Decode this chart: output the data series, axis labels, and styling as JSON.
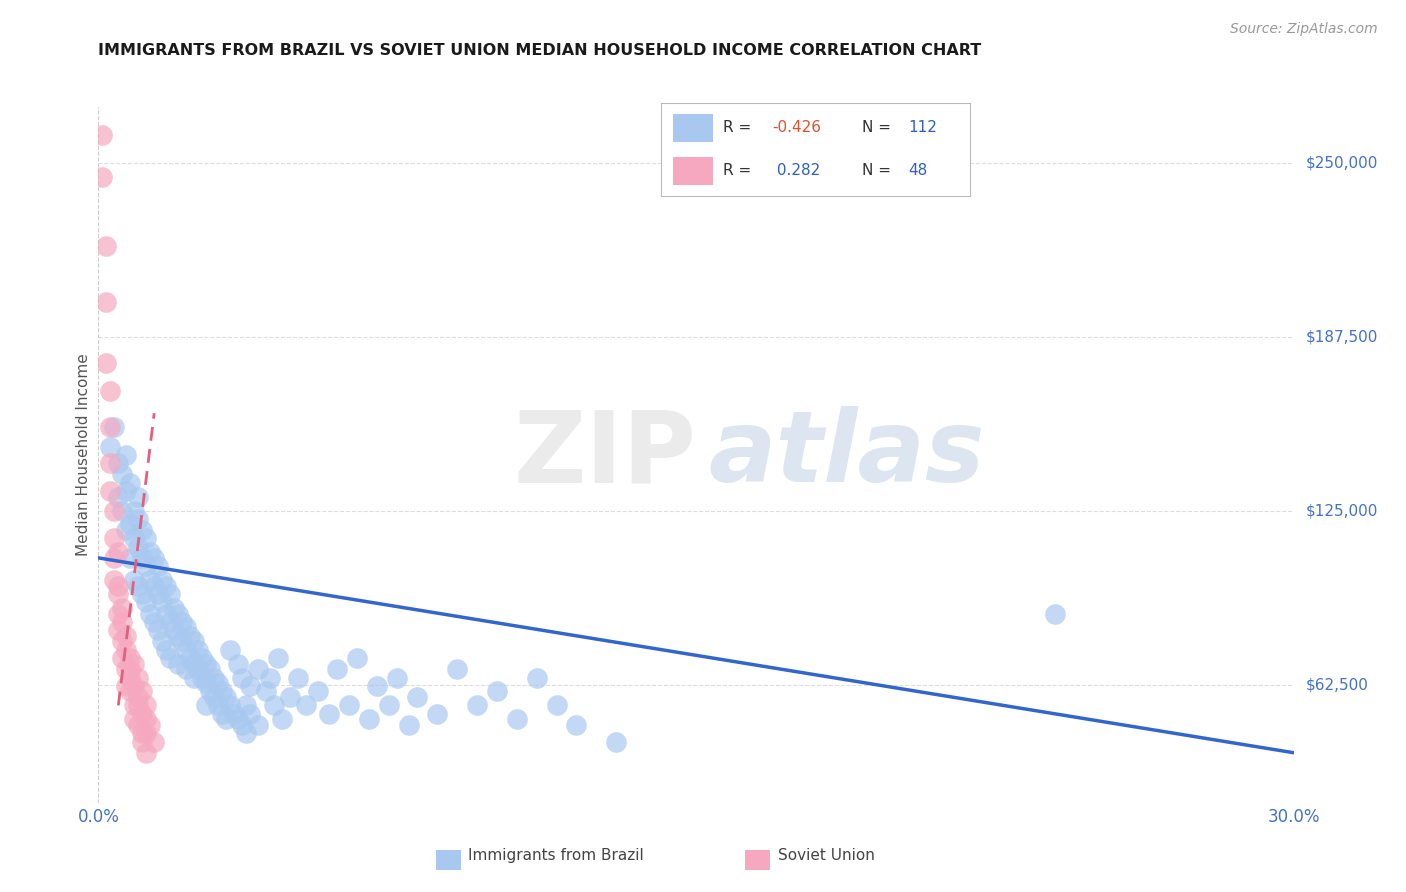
{
  "title": "IMMIGRANTS FROM BRAZIL VS SOVIET UNION MEDIAN HOUSEHOLD INCOME CORRELATION CHART",
  "source": "Source: ZipAtlas.com",
  "ylabel": "Median Household Income",
  "xlim": [
    0.0,
    0.3
  ],
  "ylim": [
    20000,
    270000
  ],
  "yticks": [
    62500,
    125000,
    187500,
    250000
  ],
  "ytick_labels": [
    "$62,500",
    "$125,000",
    "$187,500",
    "$250,000"
  ],
  "xticks": [
    0.0,
    0.05,
    0.1,
    0.15,
    0.2,
    0.25,
    0.3
  ],
  "xtick_left": "0.0%",
  "xtick_right": "30.0%",
  "color_brazil": "#a8c8f0",
  "color_soviet": "#f5a8c0",
  "color_brazil_line": "#3366cc",
  "color_soviet_line": "#e06080",
  "color_tick_labels": "#4472c4",
  "brazil_points": [
    [
      0.003,
      148000
    ],
    [
      0.004,
      155000
    ],
    [
      0.005,
      130000
    ],
    [
      0.005,
      142000
    ],
    [
      0.006,
      125000
    ],
    [
      0.006,
      138000
    ],
    [
      0.007,
      118000
    ],
    [
      0.007,
      132000
    ],
    [
      0.007,
      145000
    ],
    [
      0.008,
      120000
    ],
    [
      0.008,
      108000
    ],
    [
      0.008,
      135000
    ],
    [
      0.009,
      115000
    ],
    [
      0.009,
      125000
    ],
    [
      0.009,
      100000
    ],
    [
      0.01,
      112000
    ],
    [
      0.01,
      122000
    ],
    [
      0.01,
      98000
    ],
    [
      0.01,
      130000
    ],
    [
      0.011,
      108000
    ],
    [
      0.011,
      118000
    ],
    [
      0.011,
      95000
    ],
    [
      0.012,
      105000
    ],
    [
      0.012,
      115000
    ],
    [
      0.012,
      92000
    ],
    [
      0.013,
      100000
    ],
    [
      0.013,
      110000
    ],
    [
      0.013,
      88000
    ],
    [
      0.014,
      98000
    ],
    [
      0.014,
      108000
    ],
    [
      0.014,
      85000
    ],
    [
      0.015,
      95000
    ],
    [
      0.015,
      105000
    ],
    [
      0.015,
      82000
    ],
    [
      0.016,
      92000
    ],
    [
      0.016,
      100000
    ],
    [
      0.016,
      78000
    ],
    [
      0.017,
      88000
    ],
    [
      0.017,
      98000
    ],
    [
      0.017,
      75000
    ],
    [
      0.018,
      85000
    ],
    [
      0.018,
      95000
    ],
    [
      0.018,
      72000
    ],
    [
      0.019,
      82000
    ],
    [
      0.019,
      90000
    ],
    [
      0.02,
      80000
    ],
    [
      0.02,
      88000
    ],
    [
      0.02,
      70000
    ],
    [
      0.021,
      78000
    ],
    [
      0.021,
      85000
    ],
    [
      0.022,
      75000
    ],
    [
      0.022,
      83000
    ],
    [
      0.022,
      68000
    ],
    [
      0.023,
      72000
    ],
    [
      0.023,
      80000
    ],
    [
      0.024,
      70000
    ],
    [
      0.024,
      78000
    ],
    [
      0.024,
      65000
    ],
    [
      0.025,
      68000
    ],
    [
      0.025,
      75000
    ],
    [
      0.026,
      65000
    ],
    [
      0.026,
      72000
    ],
    [
      0.027,
      63000
    ],
    [
      0.027,
      70000
    ],
    [
      0.027,
      55000
    ],
    [
      0.028,
      60000
    ],
    [
      0.028,
      68000
    ],
    [
      0.029,
      58000
    ],
    [
      0.029,
      65000
    ],
    [
      0.03,
      55000
    ],
    [
      0.03,
      63000
    ],
    [
      0.031,
      52000
    ],
    [
      0.031,
      60000
    ],
    [
      0.032,
      50000
    ],
    [
      0.032,
      58000
    ],
    [
      0.033,
      75000
    ],
    [
      0.033,
      55000
    ],
    [
      0.034,
      52000
    ],
    [
      0.035,
      70000
    ],
    [
      0.035,
      50000
    ],
    [
      0.036,
      65000
    ],
    [
      0.036,
      48000
    ],
    [
      0.037,
      55000
    ],
    [
      0.037,
      45000
    ],
    [
      0.038,
      62000
    ],
    [
      0.038,
      52000
    ],
    [
      0.04,
      68000
    ],
    [
      0.04,
      48000
    ],
    [
      0.042,
      60000
    ],
    [
      0.043,
      65000
    ],
    [
      0.044,
      55000
    ],
    [
      0.045,
      72000
    ],
    [
      0.046,
      50000
    ],
    [
      0.048,
      58000
    ],
    [
      0.05,
      65000
    ],
    [
      0.052,
      55000
    ],
    [
      0.055,
      60000
    ],
    [
      0.058,
      52000
    ],
    [
      0.06,
      68000
    ],
    [
      0.063,
      55000
    ],
    [
      0.065,
      72000
    ],
    [
      0.068,
      50000
    ],
    [
      0.07,
      62000
    ],
    [
      0.073,
      55000
    ],
    [
      0.075,
      65000
    ],
    [
      0.078,
      48000
    ],
    [
      0.08,
      58000
    ],
    [
      0.085,
      52000
    ],
    [
      0.09,
      68000
    ],
    [
      0.095,
      55000
    ],
    [
      0.1,
      60000
    ],
    [
      0.105,
      50000
    ],
    [
      0.11,
      65000
    ],
    [
      0.115,
      55000
    ],
    [
      0.12,
      48000
    ],
    [
      0.13,
      42000
    ],
    [
      0.24,
      88000
    ]
  ],
  "soviet_points": [
    [
      0.001,
      260000
    ],
    [
      0.001,
      245000
    ],
    [
      0.002,
      220000
    ],
    [
      0.002,
      200000
    ],
    [
      0.002,
      178000
    ],
    [
      0.003,
      168000
    ],
    [
      0.003,
      155000
    ],
    [
      0.003,
      142000
    ],
    [
      0.003,
      132000
    ],
    [
      0.004,
      125000
    ],
    [
      0.004,
      115000
    ],
    [
      0.004,
      108000
    ],
    [
      0.004,
      100000
    ],
    [
      0.005,
      95000
    ],
    [
      0.005,
      110000
    ],
    [
      0.005,
      88000
    ],
    [
      0.005,
      82000
    ],
    [
      0.005,
      98000
    ],
    [
      0.006,
      90000
    ],
    [
      0.006,
      78000
    ],
    [
      0.006,
      85000
    ],
    [
      0.006,
      72000
    ],
    [
      0.007,
      80000
    ],
    [
      0.007,
      68000
    ],
    [
      0.007,
      75000
    ],
    [
      0.007,
      62000
    ],
    [
      0.008,
      72000
    ],
    [
      0.008,
      65000
    ],
    [
      0.008,
      60000
    ],
    [
      0.008,
      68000
    ],
    [
      0.009,
      62000
    ],
    [
      0.009,
      55000
    ],
    [
      0.009,
      70000
    ],
    [
      0.009,
      50000
    ],
    [
      0.01,
      58000
    ],
    [
      0.01,
      48000
    ],
    [
      0.01,
      65000
    ],
    [
      0.01,
      55000
    ],
    [
      0.011,
      52000
    ],
    [
      0.011,
      45000
    ],
    [
      0.011,
      60000
    ],
    [
      0.011,
      42000
    ],
    [
      0.012,
      50000
    ],
    [
      0.012,
      55000
    ],
    [
      0.012,
      45000
    ],
    [
      0.012,
      38000
    ],
    [
      0.013,
      48000
    ],
    [
      0.014,
      42000
    ]
  ],
  "brazil_line_x": [
    0.0,
    0.3
  ],
  "brazil_line_y": [
    108000,
    38000
  ],
  "soviet_line_x": [
    0.005,
    0.014
  ],
  "soviet_line_y": [
    55000,
    160000
  ]
}
